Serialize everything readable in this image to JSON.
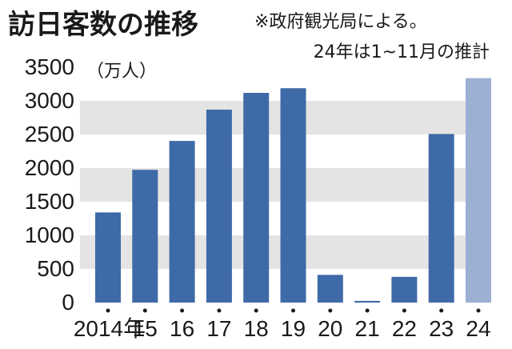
{
  "colors": {
    "bar": "#3f6aa8",
    "bar_estimate": "#9cb0d4",
    "band": "#e4e4e4",
    "text": "#1a1a1a"
  },
  "chart_data": {
    "type": "bar",
    "title": "訪日客数の推移",
    "note_line1": "※政府観光局による。",
    "note_line2": "24年は1~11月の推計",
    "ylabel": "（万人）",
    "categories": [
      "2014年",
      "15",
      "16",
      "17",
      "18",
      "19",
      "20",
      "21",
      "22",
      "23",
      "24"
    ],
    "values": [
      1341,
      1974,
      2404,
      2869,
      3119,
      3188,
      412,
      25,
      383,
      2507,
      3338
    ],
    "estimate_index": 10,
    "ylim": [
      0,
      3500
    ],
    "yticks": [
      "0",
      "500",
      "1000",
      "1500",
      "2000",
      "2500",
      "3000",
      "3500"
    ],
    "grid": "alternating horizontal bands"
  }
}
